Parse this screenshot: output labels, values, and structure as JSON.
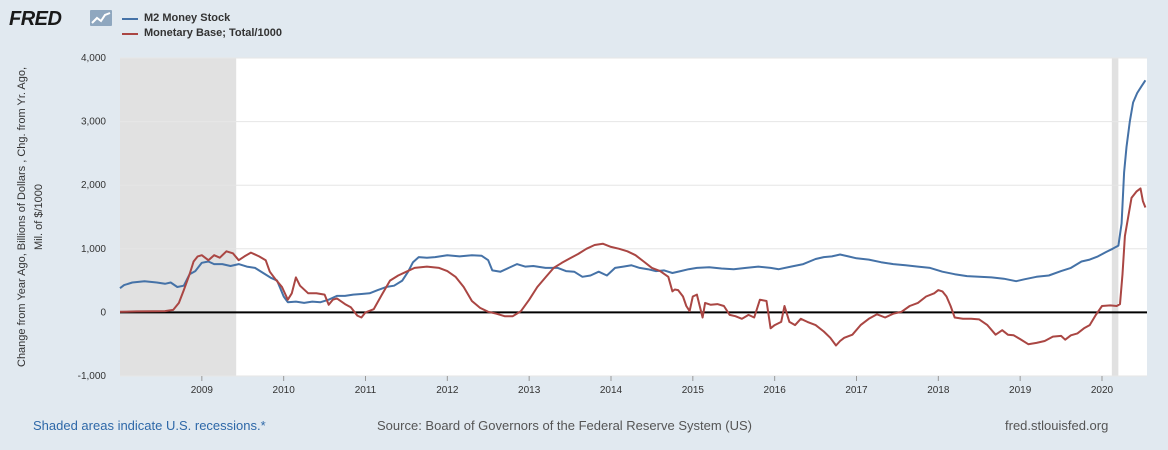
{
  "header": {
    "logo_text": "FRED",
    "logo_icon": "line-chart-icon"
  },
  "footer": {
    "recession_note": "Shaded areas indicate U.S. recessions.*",
    "source": "Source: Board of Governors of the Federal Reserve System (US)",
    "site": "fred.stlouisfed.org"
  },
  "colors": {
    "m2": "#4572a7",
    "base": "#aa4643",
    "plot_bg": "#ffffff",
    "page_bg": "#e1e9f0",
    "recession": "#e1e1e1",
    "grid": "#e6e6e6"
  },
  "chart_data": {
    "type": "line",
    "ylabel_lines": [
      "Change from Year Ago, Billions of Dollars ,  Chg. from Yr. Ago,",
      "Mil. of $/1000"
    ],
    "xlim": [
      2008.0,
      2020.55
    ],
    "ylim": [
      -1000,
      4000
    ],
    "yticks": [
      -1000,
      0,
      1000,
      2000,
      3000,
      4000
    ],
    "ytick_labels": [
      "-1,000",
      "0",
      "1,000",
      "2,000",
      "3,000",
      "4,000"
    ],
    "xticks": [
      2009,
      2010,
      2011,
      2012,
      2013,
      2014,
      2015,
      2016,
      2017,
      2018,
      2019,
      2020
    ],
    "xtick_labels": [
      "2009",
      "2010",
      "2011",
      "2012",
      "2013",
      "2014",
      "2015",
      "2016",
      "2017",
      "2018",
      "2019",
      "2020"
    ],
    "grid": true,
    "legend_position": "top-left",
    "recessions": [
      [
        2008.0,
        2009.42
      ],
      [
        2020.12,
        2020.2
      ]
    ],
    "zero_line": true,
    "series": [
      {
        "name": "M2 Money Stock",
        "color": "#4572a7",
        "points": [
          [
            2008.0,
            380
          ],
          [
            2008.05,
            430
          ],
          [
            2008.15,
            470
          ],
          [
            2008.3,
            490
          ],
          [
            2008.45,
            470
          ],
          [
            2008.55,
            450
          ],
          [
            2008.62,
            470
          ],
          [
            2008.7,
            400
          ],
          [
            2008.78,
            420
          ],
          [
            2008.85,
            600
          ],
          [
            2008.92,
            650
          ],
          [
            2009.0,
            780
          ],
          [
            2009.08,
            800
          ],
          [
            2009.15,
            760
          ],
          [
            2009.25,
            760
          ],
          [
            2009.35,
            730
          ],
          [
            2009.45,
            760
          ],
          [
            2009.55,
            720
          ],
          [
            2009.65,
            700
          ],
          [
            2009.75,
            620
          ],
          [
            2009.85,
            540
          ],
          [
            2009.92,
            500
          ],
          [
            2010.0,
            250
          ],
          [
            2010.05,
            160
          ],
          [
            2010.15,
            170
          ],
          [
            2010.25,
            150
          ],
          [
            2010.35,
            170
          ],
          [
            2010.45,
            160
          ],
          [
            2010.55,
            200
          ],
          [
            2010.65,
            260
          ],
          [
            2010.75,
            260
          ],
          [
            2010.85,
            280
          ],
          [
            2010.95,
            290
          ],
          [
            2011.05,
            300
          ],
          [
            2011.15,
            350
          ],
          [
            2011.25,
            400
          ],
          [
            2011.35,
            420
          ],
          [
            2011.45,
            500
          ],
          [
            2011.52,
            640
          ],
          [
            2011.58,
            790
          ],
          [
            2011.65,
            870
          ],
          [
            2011.75,
            860
          ],
          [
            2011.85,
            870
          ],
          [
            2012.0,
            900
          ],
          [
            2012.15,
            880
          ],
          [
            2012.3,
            900
          ],
          [
            2012.42,
            890
          ],
          [
            2012.5,
            820
          ],
          [
            2012.55,
            660
          ],
          [
            2012.65,
            640
          ],
          [
            2012.75,
            700
          ],
          [
            2012.85,
            760
          ],
          [
            2012.95,
            720
          ],
          [
            2013.05,
            730
          ],
          [
            2013.2,
            700
          ],
          [
            2013.35,
            700
          ],
          [
            2013.45,
            650
          ],
          [
            2013.55,
            640
          ],
          [
            2013.65,
            560
          ],
          [
            2013.75,
            580
          ],
          [
            2013.85,
            640
          ],
          [
            2013.95,
            580
          ],
          [
            2014.05,
            700
          ],
          [
            2014.15,
            720
          ],
          [
            2014.25,
            740
          ],
          [
            2014.35,
            700
          ],
          [
            2014.45,
            680
          ],
          [
            2014.55,
            650
          ],
          [
            2014.65,
            660
          ],
          [
            2014.75,
            620
          ],
          [
            2014.85,
            650
          ],
          [
            2014.95,
            680
          ],
          [
            2015.05,
            700
          ],
          [
            2015.2,
            710
          ],
          [
            2015.35,
            690
          ],
          [
            2015.5,
            680
          ],
          [
            2015.65,
            700
          ],
          [
            2015.8,
            720
          ],
          [
            2015.95,
            700
          ],
          [
            2016.05,
            680
          ],
          [
            2016.2,
            720
          ],
          [
            2016.35,
            760
          ],
          [
            2016.5,
            840
          ],
          [
            2016.6,
            870
          ],
          [
            2016.7,
            880
          ],
          [
            2016.8,
            910
          ],
          [
            2016.9,
            880
          ],
          [
            2017.0,
            850
          ],
          [
            2017.15,
            830
          ],
          [
            2017.3,
            790
          ],
          [
            2017.45,
            760
          ],
          [
            2017.6,
            740
          ],
          [
            2017.75,
            720
          ],
          [
            2017.9,
            700
          ],
          [
            2018.05,
            640
          ],
          [
            2018.2,
            600
          ],
          [
            2018.35,
            570
          ],
          [
            2018.5,
            560
          ],
          [
            2018.65,
            550
          ],
          [
            2018.8,
            530
          ],
          [
            2018.95,
            490
          ],
          [
            2019.05,
            520
          ],
          [
            2019.2,
            560
          ],
          [
            2019.35,
            580
          ],
          [
            2019.5,
            650
          ],
          [
            2019.62,
            700
          ],
          [
            2019.75,
            800
          ],
          [
            2019.85,
            830
          ],
          [
            2019.95,
            880
          ],
          [
            2020.05,
            950
          ],
          [
            2020.13,
            1000
          ],
          [
            2020.2,
            1050
          ],
          [
            2020.24,
            1400
          ],
          [
            2020.27,
            2200
          ],
          [
            2020.3,
            2600
          ],
          [
            2020.34,
            3000
          ],
          [
            2020.38,
            3300
          ],
          [
            2020.43,
            3450
          ],
          [
            2020.48,
            3550
          ],
          [
            2020.53,
            3650
          ]
        ]
      },
      {
        "name": "Monetary Base; Total/1000",
        "color": "#aa4643",
        "points": [
          [
            2008.0,
            10
          ],
          [
            2008.2,
            15
          ],
          [
            2008.4,
            18
          ],
          [
            2008.55,
            20
          ],
          [
            2008.65,
            40
          ],
          [
            2008.72,
            150
          ],
          [
            2008.78,
            350
          ],
          [
            2008.85,
            600
          ],
          [
            2008.9,
            800
          ],
          [
            2008.95,
            880
          ],
          [
            2009.0,
            900
          ],
          [
            2009.08,
            820
          ],
          [
            2009.15,
            900
          ],
          [
            2009.22,
            860
          ],
          [
            2009.3,
            960
          ],
          [
            2009.38,
            930
          ],
          [
            2009.45,
            820
          ],
          [
            2009.52,
            880
          ],
          [
            2009.6,
            940
          ],
          [
            2009.7,
            880
          ],
          [
            2009.78,
            820
          ],
          [
            2009.83,
            640
          ],
          [
            2009.9,
            520
          ],
          [
            2009.98,
            400
          ],
          [
            2010.05,
            200
          ],
          [
            2010.1,
            300
          ],
          [
            2010.15,
            550
          ],
          [
            2010.2,
            420
          ],
          [
            2010.3,
            300
          ],
          [
            2010.4,
            300
          ],
          [
            2010.5,
            280
          ],
          [
            2010.55,
            120
          ],
          [
            2010.6,
            200
          ],
          [
            2010.65,
            220
          ],
          [
            2010.75,
            130
          ],
          [
            2010.82,
            80
          ],
          [
            2010.9,
            -50
          ],
          [
            2010.95,
            -80
          ],
          [
            2011.0,
            0
          ],
          [
            2011.1,
            50
          ],
          [
            2011.2,
            280
          ],
          [
            2011.3,
            500
          ],
          [
            2011.4,
            580
          ],
          [
            2011.5,
            640
          ],
          [
            2011.6,
            700
          ],
          [
            2011.75,
            720
          ],
          [
            2011.9,
            700
          ],
          [
            2012.0,
            650
          ],
          [
            2012.1,
            560
          ],
          [
            2012.2,
            400
          ],
          [
            2012.3,
            180
          ],
          [
            2012.4,
            70
          ],
          [
            2012.5,
            10
          ],
          [
            2012.6,
            -20
          ],
          [
            2012.7,
            -60
          ],
          [
            2012.8,
            -60
          ],
          [
            2012.9,
            20
          ],
          [
            2013.0,
            200
          ],
          [
            2013.1,
            400
          ],
          [
            2013.2,
            550
          ],
          [
            2013.3,
            700
          ],
          [
            2013.4,
            780
          ],
          [
            2013.5,
            850
          ],
          [
            2013.6,
            920
          ],
          [
            2013.7,
            1000
          ],
          [
            2013.8,
            1060
          ],
          [
            2013.9,
            1080
          ],
          [
            2014.0,
            1030
          ],
          [
            2014.1,
            1000
          ],
          [
            2014.2,
            960
          ],
          [
            2014.3,
            900
          ],
          [
            2014.4,
            800
          ],
          [
            2014.5,
            700
          ],
          [
            2014.6,
            650
          ],
          [
            2014.7,
            560
          ],
          [
            2014.75,
            330
          ],
          [
            2014.78,
            360
          ],
          [
            2014.82,
            350
          ],
          [
            2014.88,
            250
          ],
          [
            2014.92,
            100
          ],
          [
            2014.96,
            20
          ],
          [
            2015.0,
            250
          ],
          [
            2015.05,
            280
          ],
          [
            2015.08,
            120
          ],
          [
            2015.12,
            -80
          ],
          [
            2015.15,
            150
          ],
          [
            2015.22,
            120
          ],
          [
            2015.3,
            130
          ],
          [
            2015.38,
            100
          ],
          [
            2015.45,
            -40
          ],
          [
            2015.52,
            -60
          ],
          [
            2015.6,
            -100
          ],
          [
            2015.68,
            -40
          ],
          [
            2015.75,
            -80
          ],
          [
            2015.82,
            200
          ],
          [
            2015.9,
            180
          ],
          [
            2015.95,
            -250
          ],
          [
            2016.0,
            -200
          ],
          [
            2016.08,
            -150
          ],
          [
            2016.12,
            100
          ],
          [
            2016.18,
            -150
          ],
          [
            2016.25,
            -200
          ],
          [
            2016.32,
            -100
          ],
          [
            2016.4,
            -150
          ],
          [
            2016.5,
            -200
          ],
          [
            2016.6,
            -300
          ],
          [
            2016.68,
            -400
          ],
          [
            2016.75,
            -520
          ],
          [
            2016.8,
            -450
          ],
          [
            2016.85,
            -400
          ],
          [
            2016.95,
            -350
          ],
          [
            2017.05,
            -200
          ],
          [
            2017.15,
            -100
          ],
          [
            2017.25,
            -30
          ],
          [
            2017.35,
            -80
          ],
          [
            2017.45,
            -20
          ],
          [
            2017.55,
            10
          ],
          [
            2017.65,
            100
          ],
          [
            2017.75,
            150
          ],
          [
            2017.85,
            250
          ],
          [
            2017.95,
            300
          ],
          [
            2018.0,
            350
          ],
          [
            2018.05,
            330
          ],
          [
            2018.1,
            250
          ],
          [
            2018.15,
            100
          ],
          [
            2018.2,
            -80
          ],
          [
            2018.3,
            -100
          ],
          [
            2018.4,
            -100
          ],
          [
            2018.5,
            -110
          ],
          [
            2018.6,
            -200
          ],
          [
            2018.7,
            -350
          ],
          [
            2018.78,
            -280
          ],
          [
            2018.85,
            -350
          ],
          [
            2018.92,
            -360
          ],
          [
            2019.0,
            -420
          ],
          [
            2019.1,
            -500
          ],
          [
            2019.2,
            -480
          ],
          [
            2019.3,
            -450
          ],
          [
            2019.4,
            -380
          ],
          [
            2019.5,
            -370
          ],
          [
            2019.55,
            -430
          ],
          [
            2019.62,
            -360
          ],
          [
            2019.7,
            -330
          ],
          [
            2019.78,
            -250
          ],
          [
            2019.85,
            -200
          ],
          [
            2019.92,
            -50
          ],
          [
            2020.0,
            100
          ],
          [
            2020.1,
            110
          ],
          [
            2020.18,
            100
          ],
          [
            2020.22,
            130
          ],
          [
            2020.25,
            600
          ],
          [
            2020.28,
            1200
          ],
          [
            2020.32,
            1500
          ],
          [
            2020.36,
            1800
          ],
          [
            2020.42,
            1900
          ],
          [
            2020.47,
            1950
          ],
          [
            2020.5,
            1750
          ],
          [
            2020.53,
            1650
          ]
        ]
      }
    ]
  }
}
